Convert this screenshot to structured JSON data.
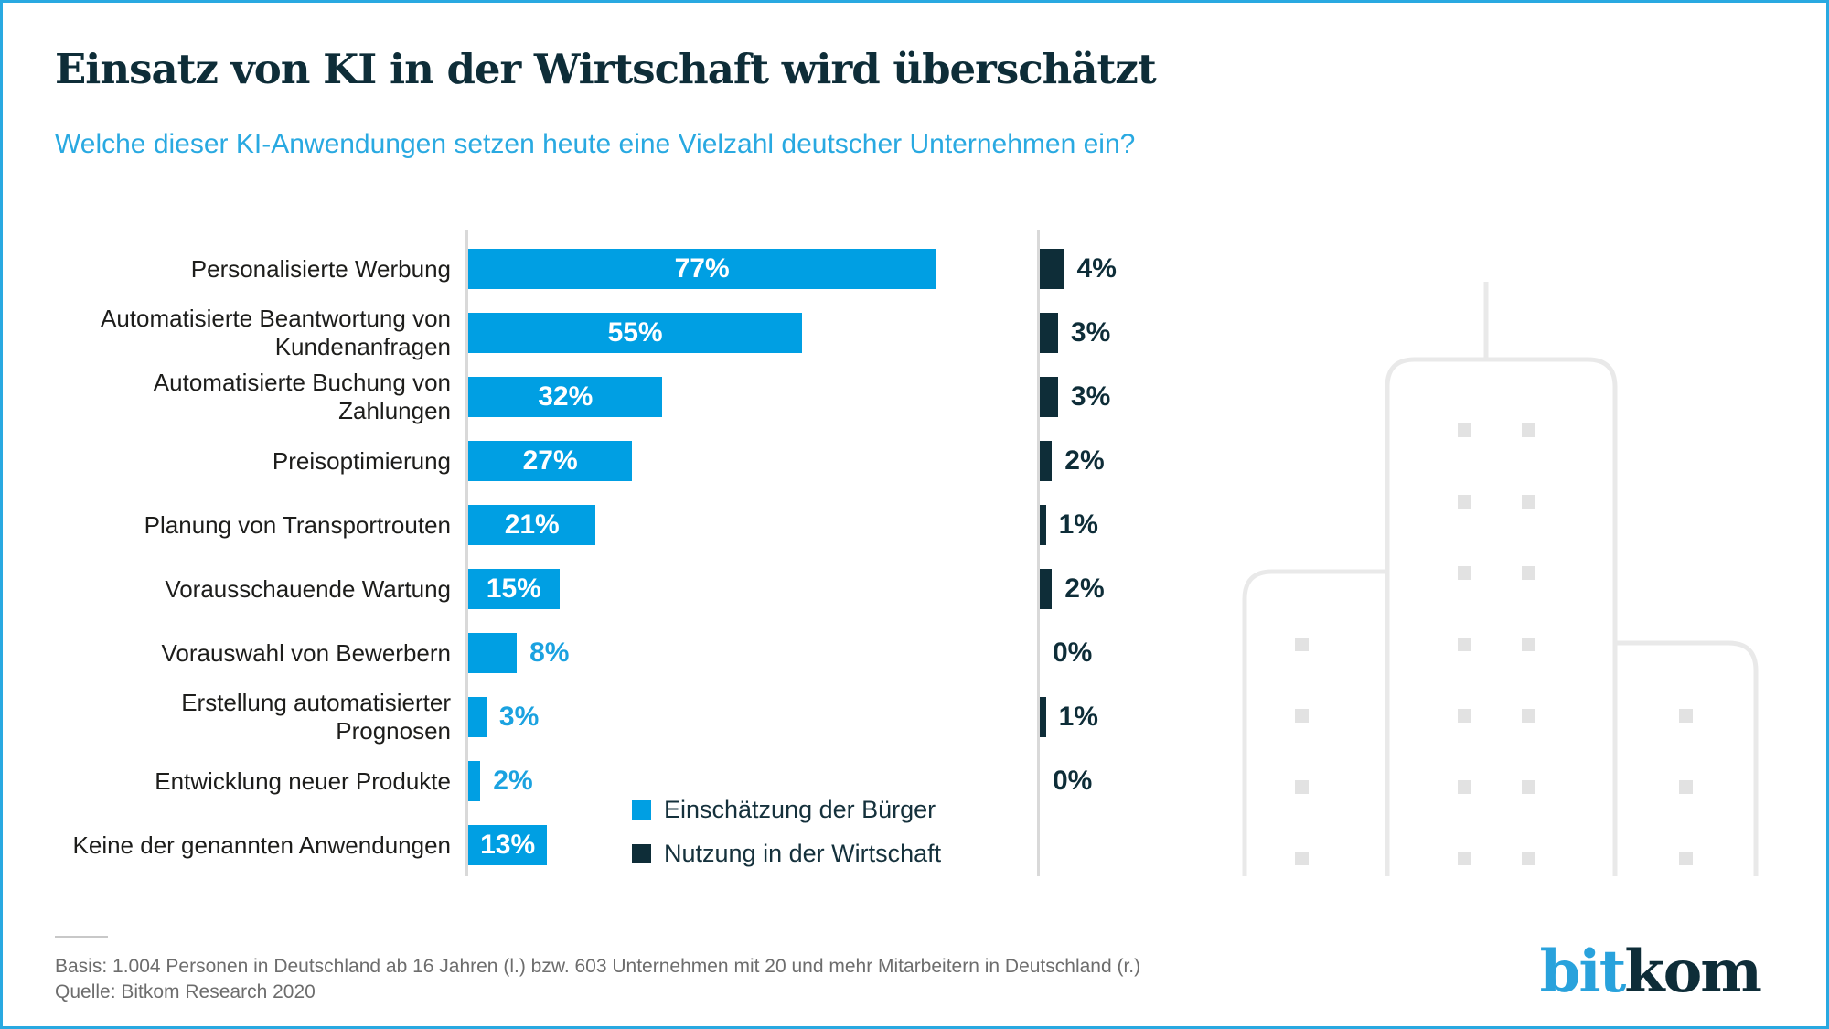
{
  "header": {
    "title": "Einsatz von KI in der Wirtschaft wird überschätzt",
    "subtitle": "Welche dieser KI-Anwendungen setzen heute eine Vielzahl deutscher Unternehmen ein?"
  },
  "chart_data": {
    "type": "bar",
    "orientation": "horizontal",
    "value_suffix": "%",
    "xlim": [
      0,
      80
    ],
    "grid": false,
    "legend_position": "bottom-center",
    "categories": [
      "Personalisierte Werbung",
      "Automatisierte Beantwortung von\nKundenanfragen",
      "Automatisierte Buchung von\nZahlungen",
      "Preisoptimierung",
      "Planung von Transportrouten",
      "Vorausschauende Wartung",
      "Vorauswahl von Bewerbern",
      "Erstellung automatisierter\nPrognosen",
      "Entwicklung neuer Produkte",
      "Keine der genannten Anwendungen"
    ],
    "series": [
      {
        "name": "Einschätzung der Bürger",
        "color": "#009fe3",
        "values": [
          77,
          55,
          32,
          27,
          21,
          15,
          8,
          3,
          2,
          13
        ]
      },
      {
        "name": "Nutzung in der Wirtschaft",
        "color": "#0e2d38",
        "values": [
          4,
          3,
          3,
          2,
          1,
          2,
          0,
          1,
          0,
          null
        ]
      }
    ]
  },
  "footer": {
    "basis": "Basis: 1.004 Personen in Deutschland ab 16 Jahren (l.) bzw. 603 Unternehmen mit 20 und mehr Mitarbeitern in Deutschland (r.)",
    "quelle": "Quelle: Bitkom Research 2020"
  },
  "logo": {
    "part1": "bit",
    "part2": "kom"
  }
}
